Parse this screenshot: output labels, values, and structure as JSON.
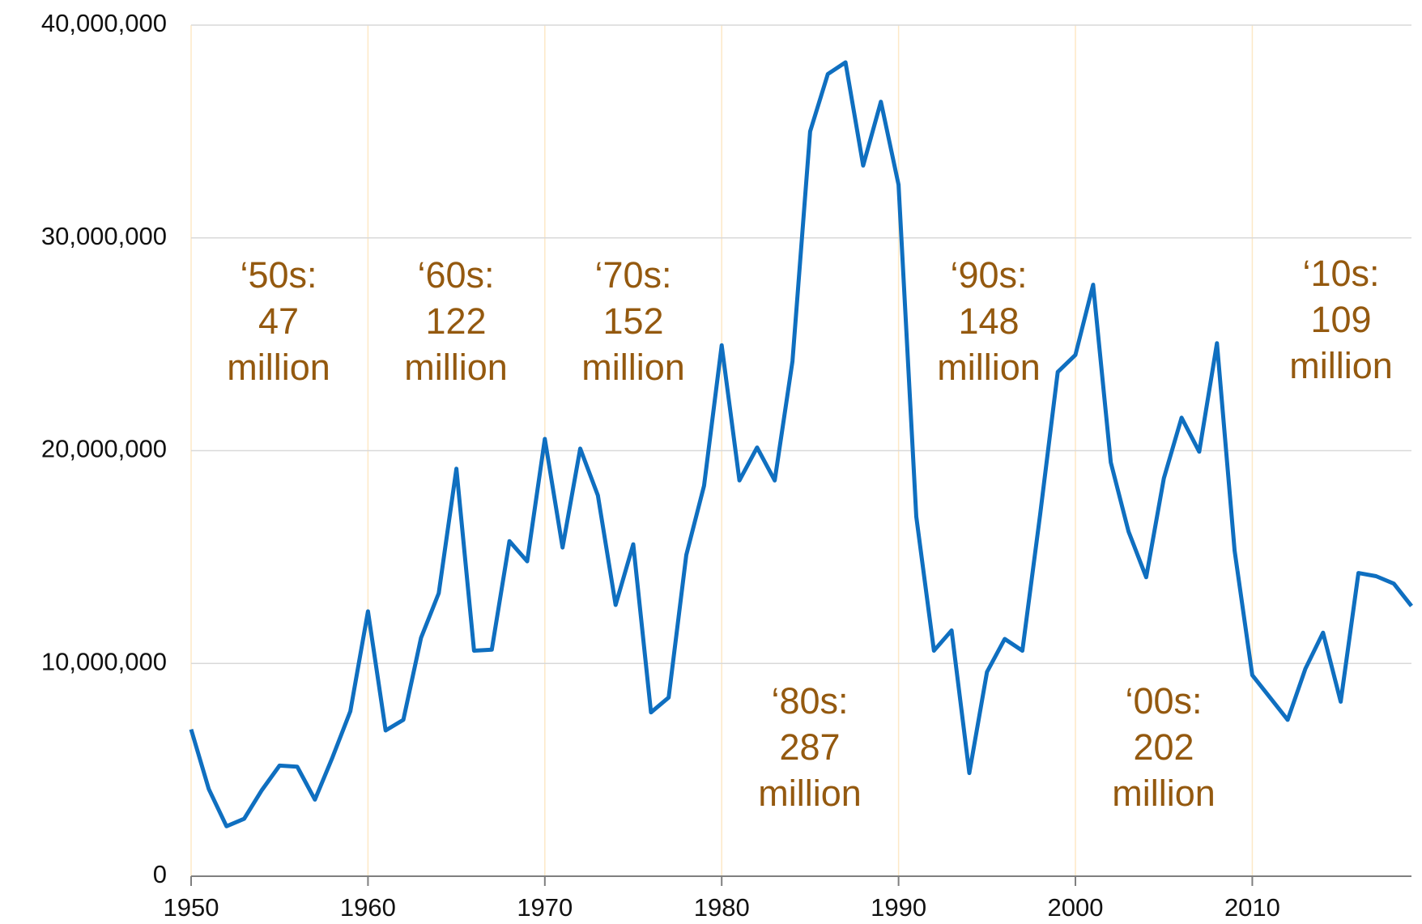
{
  "chart_data": {
    "type": "line",
    "x": [
      1950,
      1951,
      1952,
      1953,
      1954,
      1955,
      1956,
      1957,
      1958,
      1959,
      1960,
      1961,
      1962,
      1963,
      1964,
      1965,
      1966,
      1967,
      1968,
      1969,
      1970,
      1971,
      1972,
      1973,
      1974,
      1975,
      1976,
      1977,
      1978,
      1979,
      1980,
      1981,
      1982,
      1983,
      1984,
      1985,
      1986,
      1987,
      1988,
      1989,
      1990,
      1991,
      1992,
      1993,
      1994,
      1995,
      1996,
      1997,
      1998,
      1999,
      2000,
      2001,
      2002,
      2003,
      2004,
      2005,
      2006,
      2007,
      2008,
      2009,
      2010,
      2011,
      2012,
      2013,
      2014,
      2015,
      2016,
      2017,
      2018,
      2019
    ],
    "series": [
      {
        "color": "#0f6fc0",
        "values": [
          6900000,
          4100000,
          2350000,
          2700000,
          4050000,
          5200000,
          5150000,
          3600000,
          5600000,
          7750000,
          12450000,
          6850000,
          7350000,
          11200000,
          13300000,
          19150000,
          10600000,
          10650000,
          15750000,
          14800000,
          20550000,
          15450000,
          20100000,
          17900000,
          12750000,
          15600000,
          7700000,
          8400000,
          15100000,
          18350000,
          24950000,
          18600000,
          20150000,
          18600000,
          24200000,
          35000000,
          37700000,
          38250000,
          33400000,
          36400000,
          32500000,
          16900000,
          10600000,
          11550000,
          4850000,
          9600000,
          11150000,
          10600000,
          16950000,
          23700000,
          24500000,
          27800000,
          19450000,
          16200000,
          14050000,
          18700000,
          21550000,
          19950000,
          25050000,
          15300000,
          9450000,
          8400000,
          7350000,
          9750000,
          11450000,
          8200000,
          14250000,
          14100000,
          13750000,
          12700000
        ]
      }
    ],
    "xlim": [
      1950,
      2019
    ],
    "xticks": [
      1950,
      1960,
      1970,
      1980,
      1990,
      2000,
      2010
    ],
    "ylim": [
      0,
      40000000
    ],
    "yticks": [
      0,
      {
        "value": 10000000,
        "label": "10,000,000"
      },
      {
        "value": 20000000,
        "label": "20,000,000"
      },
      {
        "value": 30000000,
        "label": "30,000,000"
      },
      {
        "value": 40000000,
        "label": "40,000,000"
      }
    ],
    "grid": true,
    "annotations": [
      {
        "lines": [
          "‘50s:",
          "47",
          "million"
        ]
      },
      {
        "lines": [
          "‘60s:",
          "122",
          "million"
        ]
      },
      {
        "lines": [
          "‘70s:",
          "152",
          "million"
        ]
      },
      {
        "lines": [
          "‘80s:",
          "287",
          "million"
        ]
      },
      {
        "lines": [
          "‘90s:",
          "148",
          "million"
        ]
      },
      {
        "lines": [
          "‘00s:",
          "202",
          "million"
        ]
      },
      {
        "lines": [
          "‘10s:",
          "109",
          "million"
        ]
      }
    ]
  }
}
